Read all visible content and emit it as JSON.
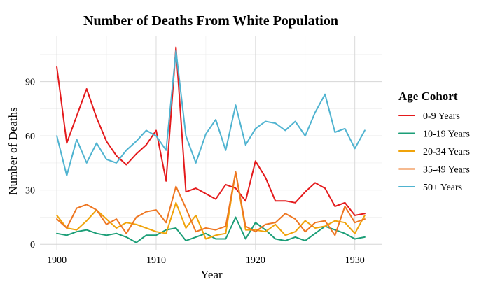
{
  "chart_data": {
    "type": "line",
    "title": "Number of Deaths From White Population",
    "xlabel": "Year",
    "ylabel": "Number of Deaths",
    "x": [
      1900,
      1901,
      1902,
      1903,
      1904,
      1905,
      1906,
      1907,
      1908,
      1909,
      1910,
      1911,
      1912,
      1913,
      1914,
      1915,
      1916,
      1917,
      1918,
      1919,
      1920,
      1921,
      1922,
      1923,
      1924,
      1925,
      1926,
      1927,
      1928,
      1929,
      1930,
      1931
    ],
    "xlim": [
      1898.3,
      1932.7
    ],
    "ylim": [
      -3,
      115
    ],
    "x_ticks": [
      1900,
      1910,
      1920,
      1930
    ],
    "x_tick_labels": [
      "1900",
      "1910",
      "1920",
      "1930"
    ],
    "y_ticks": [
      0,
      30,
      60,
      90
    ],
    "y_tick_labels": [
      "0",
      "30",
      "60",
      "90"
    ],
    "grid": true,
    "legend": {
      "title": "Age Cohort",
      "position": "right"
    },
    "series": [
      {
        "name": "0-9 Years",
        "color": "#e41a1c",
        "values": [
          98,
          56,
          71,
          86,
          70,
          57,
          49,
          44,
          50,
          55,
          63,
          35,
          109,
          29,
          31,
          28,
          25,
          33,
          31,
          24,
          46,
          37,
          24,
          24,
          23,
          29,
          34,
          31,
          21,
          23,
          16,
          17
        ]
      },
      {
        "name": "10-19 Years",
        "color": "#1b9e77",
        "values": [
          6,
          5,
          7,
          8,
          6,
          5,
          6,
          4,
          1,
          5,
          5,
          8,
          9,
          2,
          4,
          6,
          3,
          3,
          15,
          3,
          12,
          8,
          3,
          2,
          4,
          2,
          6,
          10,
          8,
          6,
          3,
          4
        ]
      },
      {
        "name": "20-34 Years",
        "color": "#f0a30a",
        "values": [
          16,
          9,
          8,
          13,
          19,
          14,
          9,
          12,
          11,
          9,
          7,
          6,
          23,
          9,
          16,
          3,
          5,
          6,
          40,
          8,
          8,
          7,
          11,
          5,
          7,
          13,
          9,
          10,
          13,
          12,
          6,
          16
        ]
      },
      {
        "name": "35-49 Years",
        "color": "#ee7621",
        "values": [
          14,
          9,
          20,
          22,
          19,
          11,
          14,
          6,
          15,
          18,
          19,
          12,
          32,
          20,
          7,
          9,
          8,
          10,
          40,
          10,
          7,
          11,
          12,
          17,
          14,
          7,
          12,
          13,
          5,
          21,
          12,
          14
        ]
      },
      {
        "name": "50+ Years",
        "color": "#4fb3d0",
        "values": [
          60,
          38,
          58,
          45,
          56,
          47,
          45,
          52,
          57,
          63,
          60,
          52,
          107,
          60,
          45,
          61,
          69,
          52,
          77,
          55,
          64,
          68,
          67,
          63,
          68,
          60,
          73,
          83,
          62,
          64,
          53,
          63
        ]
      }
    ]
  }
}
